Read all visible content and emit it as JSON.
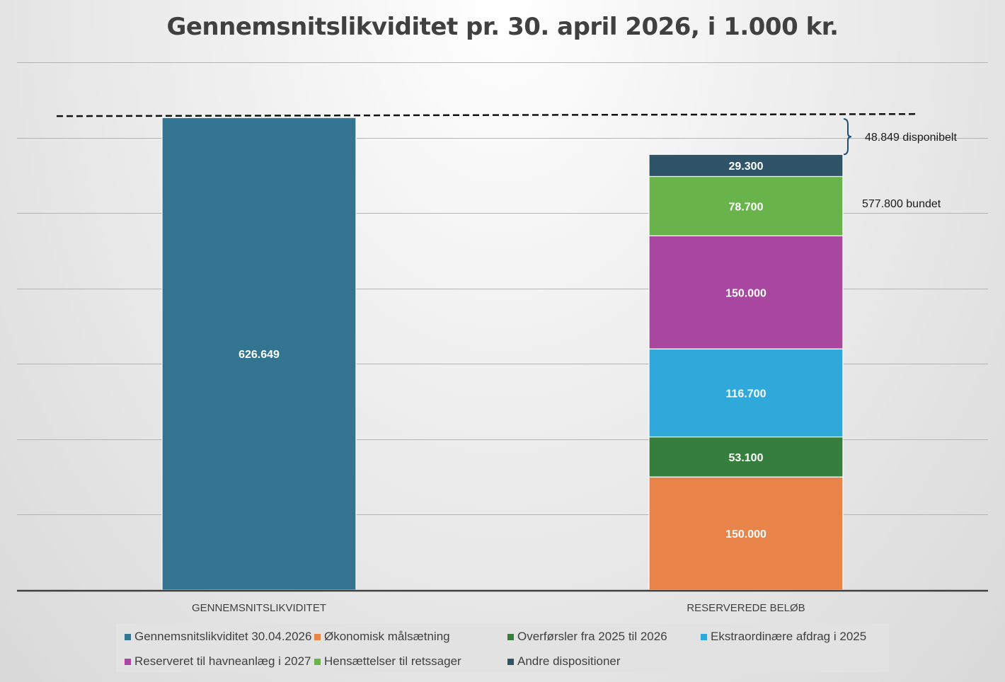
{
  "chart_data": {
    "type": "bar",
    "stacked": true,
    "title": "Gennemsnitslikviditet pr. 30. april 2026, i 1.000 kr.",
    "categories": [
      "GENNEMSNITSLIKVIDITET",
      "RESERVEREDE BELØB"
    ],
    "ylim": [
      0,
      700000
    ],
    "grid": true,
    "legend_position": "bottom",
    "series": [
      {
        "name": "Gennemsnitslikviditet 30.04.2026",
        "color": "#337490",
        "values": [
          626649,
          null
        ],
        "labels": [
          "626.649",
          ""
        ]
      },
      {
        "name": "Økonomisk målsætning",
        "color": "#e8834a",
        "values": [
          null,
          150000
        ],
        "labels": [
          "",
          "150.000"
        ]
      },
      {
        "name": "Overførsler fra 2025 til 2026",
        "color": "#357e3e",
        "values": [
          null,
          53100
        ],
        "labels": [
          "",
          "53.100"
        ]
      },
      {
        "name": "Ekstraordinære afdrag i 2025",
        "color": "#2ea9d9",
        "values": [
          null,
          116700
        ],
        "labels": [
          "",
          "116.700"
        ]
      },
      {
        "name": "Reserveret til havneanlæg i 2027",
        "color": "#a946a0",
        "values": [
          null,
          150000
        ],
        "labels": [
          "",
          "150.000"
        ]
      },
      {
        "name": "Hensættelser til retssager",
        "color": "#69b44a",
        "values": [
          null,
          78700
        ],
        "labels": [
          "",
          "78.700"
        ]
      },
      {
        "name": "Andre dispositioner",
        "color": "#2f5468",
        "values": [
          null,
          29300
        ],
        "labels": [
          "",
          "29.300"
        ]
      }
    ],
    "reference_line": {
      "value": 626649,
      "style": "dashed"
    },
    "annotations": [
      {
        "text": "48.849 disponibelt",
        "from": 577800,
        "to": 626649
      },
      {
        "text": "577.800 bundet",
        "at": 577800
      }
    ]
  }
}
